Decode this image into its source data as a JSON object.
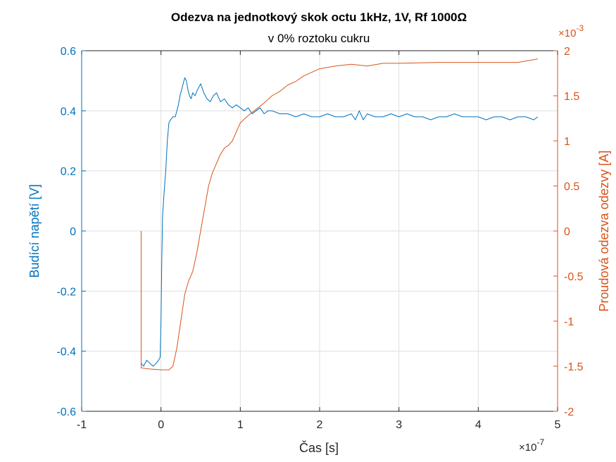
{
  "chart_data": {
    "type": "line",
    "title": "Odezva na jednotkový skok octu 1kHz, 1V, Rf 1000Ω",
    "subtitle": "v 0% roztoku cukru",
    "xlabel": "Čas [s]",
    "x_exponent": {
      "base": "×10",
      "power": "-7"
    },
    "xlim": [
      -1e-07,
      5e-07
    ],
    "x_ticks": [
      -1e-07,
      0,
      1e-07,
      2e-07,
      3e-07,
      4e-07,
      5e-07
    ],
    "x_tick_labels": [
      "-1",
      "0",
      "1",
      "2",
      "3",
      "4",
      "5"
    ],
    "grid": true,
    "left_axis": {
      "label": "Budící napětí [V]",
      "color": "#0072BD",
      "ylim": [
        -0.6,
        0.6
      ],
      "ticks": [
        -0.6,
        -0.4,
        -0.2,
        0,
        0.2,
        0.4,
        0.6
      ],
      "tick_labels": [
        "-0.6",
        "-0.4",
        "-0.2",
        "0",
        "0.2",
        "0.4",
        "0.6"
      ]
    },
    "right_axis": {
      "label": "Proudová odezva odezvy [A]",
      "color": "#D95319",
      "exponent": {
        "base": "×10",
        "power": "-3"
      },
      "ylim": [
        -0.002,
        0.002
      ],
      "ticks": [
        -0.002,
        -0.0015,
        -0.001,
        -0.0005,
        0,
        0.0005,
        0.001,
        0.0015,
        0.002
      ],
      "tick_labels": [
        "-2",
        "-1.5",
        "-1",
        "-0.5",
        "0",
        "0.5",
        "1",
        "1.5",
        "2"
      ]
    },
    "series": [
      {
        "axis": "left",
        "color": "#0072BD",
        "x": [
          -2.5e-08,
          -2.2e-08,
          -1.8e-08,
          -1.4e-08,
          -1e-08,
          -6e-09,
          -3e-09,
          -1e-09,
          0,
          1e-09,
          2e-09,
          4e-09,
          6e-09,
          8e-09,
          1e-08,
          1.2e-08,
          1.5e-08,
          1.8e-08,
          2e-08,
          2.2e-08,
          2.4e-08,
          2.6e-08,
          2.8e-08,
          3e-08,
          3.2e-08,
          3.4e-08,
          3.6e-08,
          3.8e-08,
          4e-08,
          4.3e-08,
          4.6e-08,
          5e-08,
          5.4e-08,
          5.8e-08,
          6.2e-08,
          6.6e-08,
          7e-08,
          7.5e-08,
          8e-08,
          8.5e-08,
          9e-08,
          9.5e-08,
          1e-07,
          1.05e-07,
          1.1e-07,
          1.15e-07,
          1.2e-07,
          1.25e-07,
          1.3e-07,
          1.35e-07,
          1.4e-07,
          1.5e-07,
          1.6e-07,
          1.7e-07,
          1.8e-07,
          1.9e-07,
          2e-07,
          2.1e-07,
          2.2e-07,
          2.3e-07,
          2.4e-07,
          2.45e-07,
          2.5e-07,
          2.55e-07,
          2.6e-07,
          2.7e-07,
          2.8e-07,
          2.9e-07,
          3e-07,
          3.1e-07,
          3.2e-07,
          3.3e-07,
          3.4e-07,
          3.5e-07,
          3.6e-07,
          3.7e-07,
          3.8e-07,
          3.9e-07,
          4e-07,
          4.1e-07,
          4.2e-07,
          4.3e-07,
          4.4e-07,
          4.5e-07,
          4.6e-07,
          4.7e-07,
          4.75e-07
        ],
        "y": [
          -0.44,
          -0.45,
          -0.43,
          -0.44,
          -0.45,
          -0.44,
          -0.43,
          -0.42,
          -0.3,
          -0.1,
          0.05,
          0.13,
          0.2,
          0.3,
          0.36,
          0.37,
          0.38,
          0.38,
          0.4,
          0.42,
          0.45,
          0.47,
          0.49,
          0.51,
          0.5,
          0.47,
          0.45,
          0.44,
          0.46,
          0.45,
          0.47,
          0.49,
          0.46,
          0.44,
          0.43,
          0.45,
          0.46,
          0.43,
          0.44,
          0.42,
          0.41,
          0.42,
          0.41,
          0.4,
          0.41,
          0.39,
          0.4,
          0.41,
          0.39,
          0.4,
          0.4,
          0.39,
          0.39,
          0.38,
          0.39,
          0.38,
          0.38,
          0.39,
          0.38,
          0.38,
          0.39,
          0.37,
          0.4,
          0.37,
          0.39,
          0.38,
          0.38,
          0.39,
          0.38,
          0.39,
          0.38,
          0.38,
          0.37,
          0.38,
          0.38,
          0.39,
          0.38,
          0.38,
          0.38,
          0.37,
          0.38,
          0.38,
          0.37,
          0.38,
          0.38,
          0.37,
          0.38
        ]
      },
      {
        "axis": "right",
        "color": "#D95319",
        "x": [
          -2.5e-08,
          -2.5e-08,
          -2.4e-08,
          -1.5e-08,
          0,
          1e-08,
          1.5e-08,
          2e-08,
          2.5e-08,
          3e-08,
          3.5e-08,
          4e-08,
          4.5e-08,
          5e-08,
          5.5e-08,
          6e-08,
          6.5e-08,
          7e-08,
          7.5e-08,
          8e-08,
          8.5e-08,
          9e-08,
          9.5e-08,
          1e-07,
          1.1e-07,
          1.2e-07,
          1.3e-07,
          1.4e-07,
          1.5e-07,
          1.6e-07,
          1.7e-07,
          1.8e-07,
          1.9e-07,
          2e-07,
          2.2e-07,
          2.4e-07,
          2.6e-07,
          2.8e-07,
          3e-07,
          3.5e-07,
          4e-07,
          4.5e-07,
          4.7e-07,
          4.75e-07
        ],
        "y": [
          0,
          -0.00152,
          -0.00152,
          -0.00153,
          -0.00154,
          -0.00154,
          -0.0015,
          -0.0013,
          -0.001,
          -0.0007,
          -0.00055,
          -0.00045,
          -0.00025,
          0,
          0.00025,
          0.0005,
          0.00065,
          0.00075,
          0.00085,
          0.00092,
          0.00095,
          0.001,
          0.0011,
          0.0012,
          0.00128,
          0.00135,
          0.00142,
          0.0015,
          0.00155,
          0.00162,
          0.00166,
          0.00172,
          0.00176,
          0.0018,
          0.00183,
          0.00185,
          0.00183,
          0.00186,
          0.00186,
          0.00187,
          0.00187,
          0.00187,
          0.0019,
          0.00191
        ]
      }
    ]
  }
}
